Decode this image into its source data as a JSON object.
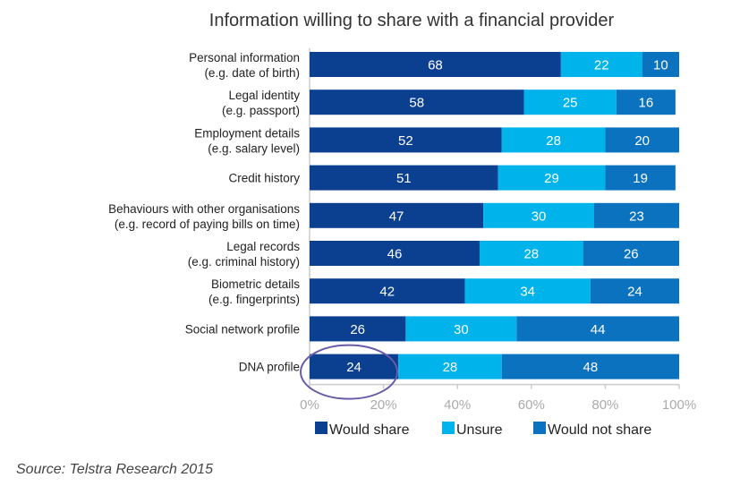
{
  "chart_data": {
    "type": "bar",
    "orientation": "horizontal",
    "stacked": true,
    "title": "Information willing to share with a financial provider",
    "categories": [
      [
        "Personal information",
        "(e.g. date of birth)"
      ],
      [
        "Legal identity",
        "(e.g. passport)"
      ],
      [
        "Employment details",
        "(e.g. salary level)"
      ],
      [
        "Credit history"
      ],
      [
        "Behaviours with other organisations",
        "(e.g. record of paying bills on time)"
      ],
      [
        "Legal records",
        "(e.g. criminal history)"
      ],
      [
        "Biometric details",
        "(e.g. fingerprints)"
      ],
      [
        "Social network profile"
      ],
      [
        "DNA profile"
      ]
    ],
    "series": [
      {
        "name": "Would share",
        "color": "#0b3f8f",
        "values": [
          68,
          58,
          52,
          51,
          47,
          46,
          42,
          26,
          24
        ]
      },
      {
        "name": "Unsure",
        "color": "#00b3ea",
        "values": [
          22,
          25,
          28,
          29,
          30,
          28,
          34,
          30,
          28
        ]
      },
      {
        "name": "Would not share",
        "color": "#0b72bf",
        "values": [
          10,
          16,
          20,
          19,
          23,
          26,
          24,
          44,
          48
        ]
      }
    ],
    "xlim": [
      0,
      100
    ],
    "xticks": [
      "0%",
      "20%",
      "40%",
      "60%",
      "80%",
      "100%"
    ],
    "legend_position": "bottom",
    "annotation": "circle around DNA profile 'Would share' value",
    "annotation_color": "#6a5aa8",
    "source": "Source: Telstra Research 2015"
  }
}
